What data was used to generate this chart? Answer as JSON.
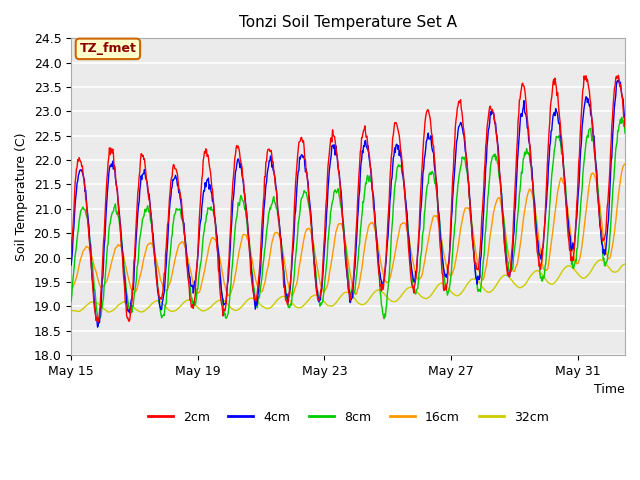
{
  "title": "Tonzi Soil Temperature Set A",
  "xlabel": "Time",
  "ylabel": "Soil Temperature (C)",
  "ylim": [
    18.0,
    24.5
  ],
  "yticks": [
    18.0,
    18.5,
    19.0,
    19.5,
    20.0,
    20.5,
    21.0,
    21.5,
    22.0,
    22.5,
    23.0,
    23.5,
    24.0,
    24.5
  ],
  "xtick_labels": [
    "May 15",
    "May 19",
    "May 23",
    "May 27",
    "May 31"
  ],
  "xtick_positions": [
    0,
    4,
    8,
    12,
    16
  ],
  "annotation_text": "TZ_fmet",
  "annotation_bg": "#ffffcc",
  "annotation_border": "#cc6600",
  "line_colors": {
    "2cm": "#ff0000",
    "4cm": "#0000ff",
    "8cm": "#00cc00",
    "16cm": "#ff9900",
    "32cm": "#cccc00"
  },
  "legend_labels": [
    "2cm",
    "4cm",
    "8cm",
    "16cm",
    "32cm"
  ],
  "plot_bg": "#ebebeb",
  "n_days": 17.5,
  "points_per_day": 48
}
